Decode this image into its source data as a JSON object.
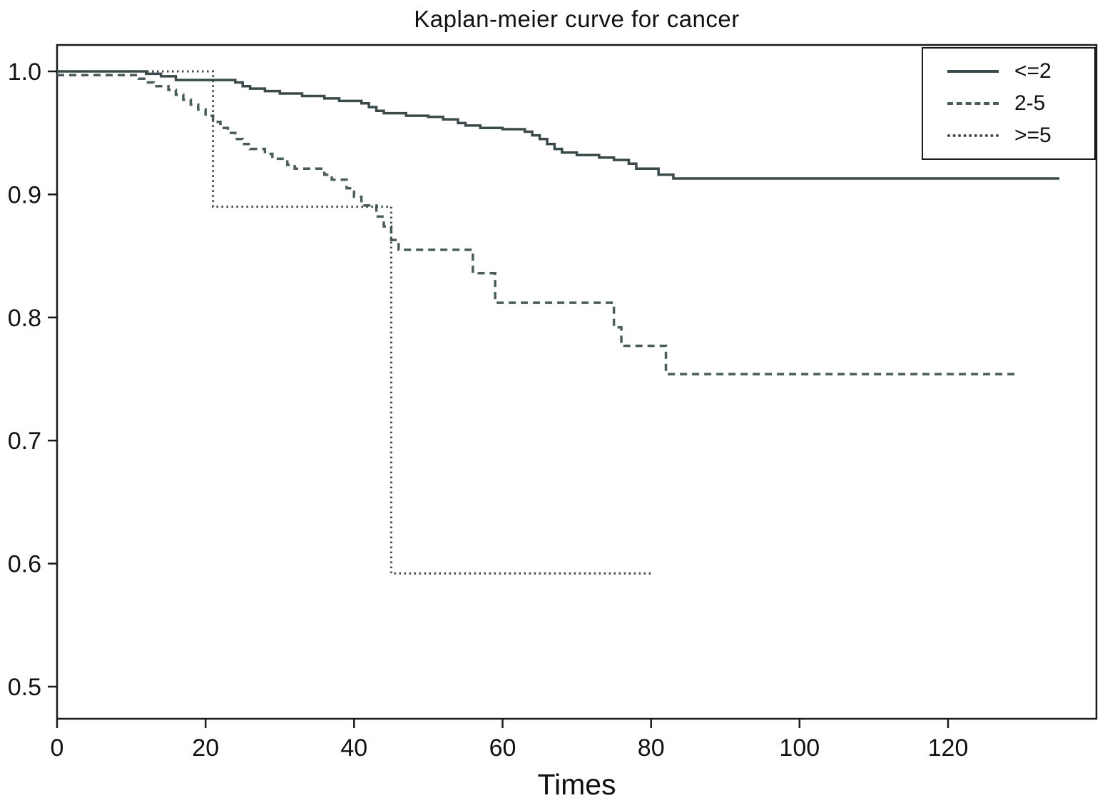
{
  "chart_data": {
    "type": "line",
    "subtype": "step-survival",
    "title": "Kaplan-meier curve for cancer",
    "xlabel": "Times",
    "ylabel": "",
    "xlim": [
      0,
      140
    ],
    "ylim": [
      0.474,
      1.021
    ],
    "x_ticks": [
      0,
      20,
      40,
      60,
      80,
      100,
      120
    ],
    "y_ticks": [
      0.5,
      0.6,
      0.7,
      0.8,
      0.9,
      1.0
    ],
    "grid": false,
    "legend_position": "top-right",
    "frame_color": "#1a1a1a",
    "series": [
      {
        "name": "<=2",
        "style": "solid",
        "color": "#3b4a4a",
        "points": [
          [
            0,
            1.0
          ],
          [
            12,
            0.998
          ],
          [
            14,
            0.996
          ],
          [
            16,
            0.993
          ],
          [
            24,
            0.991
          ],
          [
            25,
            0.988
          ],
          [
            26,
            0.986
          ],
          [
            28,
            0.984
          ],
          [
            30,
            0.982
          ],
          [
            33,
            0.98
          ],
          [
            36,
            0.978
          ],
          [
            38,
            0.976
          ],
          [
            41,
            0.974
          ],
          [
            42,
            0.971
          ],
          [
            43,
            0.968
          ],
          [
            44,
            0.966
          ],
          [
            47,
            0.964
          ],
          [
            50,
            0.963
          ],
          [
            52,
            0.961
          ],
          [
            54,
            0.958
          ],
          [
            55,
            0.956
          ],
          [
            57,
            0.954
          ],
          [
            60,
            0.953
          ],
          [
            63,
            0.951
          ],
          [
            64,
            0.948
          ],
          [
            65,
            0.945
          ],
          [
            66,
            0.941
          ],
          [
            67,
            0.937
          ],
          [
            68,
            0.934
          ],
          [
            70,
            0.932
          ],
          [
            73,
            0.93
          ],
          [
            75,
            0.928
          ],
          [
            77,
            0.925
          ],
          [
            78,
            0.921
          ],
          [
            81,
            0.916
          ],
          [
            83,
            0.913
          ],
          [
            135,
            0.913
          ]
        ]
      },
      {
        "name": "2-5",
        "style": "dashed",
        "color": "#4a5c5c",
        "points": [
          [
            0,
            0.997
          ],
          [
            11,
            0.994
          ],
          [
            12,
            0.991
          ],
          [
            13,
            0.988
          ],
          [
            15,
            0.985
          ],
          [
            16,
            0.981
          ],
          [
            17,
            0.977
          ],
          [
            18,
            0.973
          ],
          [
            19,
            0.969
          ],
          [
            20,
            0.964
          ],
          [
            21,
            0.959
          ],
          [
            22,
            0.954
          ],
          [
            23,
            0.95
          ],
          [
            24,
            0.945
          ],
          [
            25,
            0.941
          ],
          [
            26,
            0.937
          ],
          [
            28,
            0.933
          ],
          [
            29,
            0.929
          ],
          [
            31,
            0.924
          ],
          [
            32,
            0.921
          ],
          [
            36,
            0.916
          ],
          [
            37,
            0.912
          ],
          [
            39,
            0.905
          ],
          [
            40,
            0.898
          ],
          [
            41,
            0.891
          ],
          [
            43,
            0.882
          ],
          [
            44,
            0.874
          ],
          [
            45,
            0.863
          ],
          [
            46,
            0.855
          ],
          [
            56,
            0.836
          ],
          [
            59,
            0.812
          ],
          [
            75,
            0.792
          ],
          [
            76,
            0.777
          ],
          [
            82,
            0.754
          ],
          [
            129,
            0.754
          ]
        ]
      },
      {
        "name": ">=5",
        "style": "dotted",
        "color": "#3d4a4a",
        "points": [
          [
            0,
            1.0
          ],
          [
            21,
            0.89
          ],
          [
            45,
            0.592
          ],
          [
            80,
            0.592
          ]
        ]
      }
    ]
  }
}
